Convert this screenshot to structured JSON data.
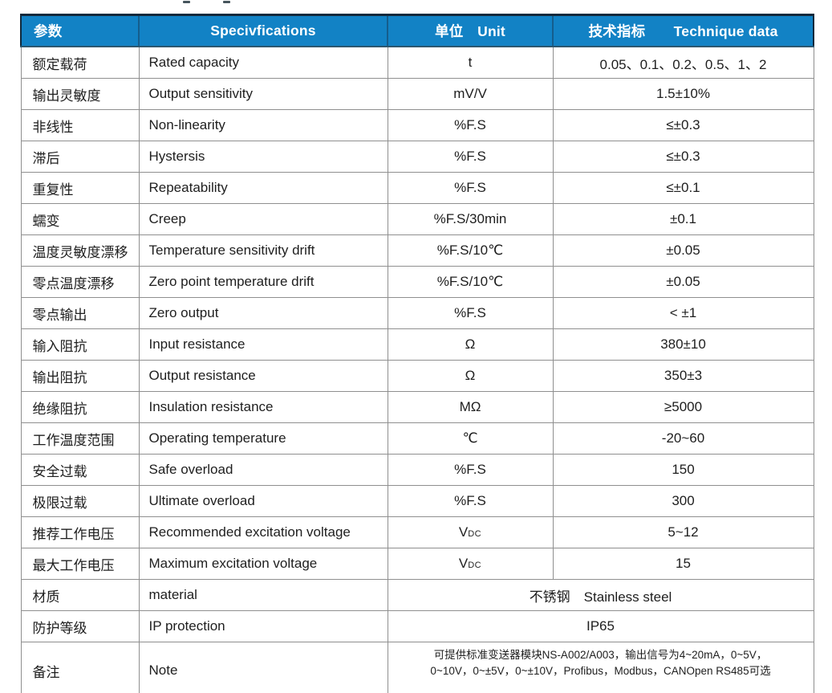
{
  "page": {
    "background_color": "#ffffff",
    "accent_color": "#1282c5",
    "dark_border_color": "#10293c"
  },
  "table": {
    "header": {
      "bg_color": "#1282c5",
      "text_color": "#ffffff",
      "columns": [
        {
          "id": "param",
          "label": "参数"
        },
        {
          "id": "specifications",
          "label": "Specivfications"
        },
        {
          "id": "unit",
          "label": "单位　Unit"
        },
        {
          "id": "technique-data",
          "label": "技术指标　　Technique data"
        }
      ]
    },
    "rows": [
      {
        "param_cn": "额定载荷",
        "param_en": "Rated capacity",
        "unit": "t",
        "value": "0.05、0.1、0.2、0.5、1、2"
      },
      {
        "param_cn": "输出灵敏度",
        "param_en": "Output sensitivity",
        "unit": "mV/V",
        "value": "1.5±10%"
      },
      {
        "param_cn": "非线性",
        "param_en": "Non-linearity",
        "unit": "%F.S",
        "value": "≤±0.3"
      },
      {
        "param_cn": "滞后",
        "param_en": "Hystersis",
        "unit": "%F.S",
        "value": "≤±0.3"
      },
      {
        "param_cn": "重复性",
        "param_en": "Repeatability",
        "unit": "%F.S",
        "value": "≤±0.1"
      },
      {
        "param_cn": "蠕变",
        "param_en": "Creep",
        "unit": "%F.S/30min",
        "value": "±0.1"
      },
      {
        "param_cn": "温度灵敏度漂移",
        "param_en": "Temperature sensitivity drift",
        "unit": "%F.S/10℃",
        "value": "±0.05"
      },
      {
        "param_cn": "零点温度漂移",
        "param_en": "Zero point temperature drift",
        "unit": "%F.S/10℃",
        "value": "±0.05"
      },
      {
        "param_cn": "零点输出",
        "param_en": "Zero output",
        "unit": "%F.S",
        "value": "< ±1"
      },
      {
        "param_cn": "输入阻抗",
        "param_en": "Input resistance",
        "unit": "Ω",
        "value": "380±10"
      },
      {
        "param_cn": "输出阻抗",
        "param_en": "Output resistance",
        "unit": "Ω",
        "value": "350±3"
      },
      {
        "param_cn": "绝缘阻抗",
        "param_en": "Insulation resistance",
        "unit": "MΩ",
        "value": "≥5000"
      },
      {
        "param_cn": "工作温度范围",
        "param_en": "Operating temperature",
        "unit": "℃",
        "value": "-20~60"
      },
      {
        "param_cn": "安全过载",
        "param_en": "Safe overload",
        "unit": "%F.S",
        "value": "150"
      },
      {
        "param_cn": "极限过载",
        "param_en": "Ultimate overload",
        "unit": "%F.S",
        "value": "300"
      },
      {
        "param_cn": "推荐工作电压",
        "param_en": "Recommended excitation voltage",
        "unit": {
          "main": "V",
          "sub": "DC"
        },
        "value": "5~12"
      },
      {
        "param_cn": "最大工作电压",
        "param_en": "Maximum excitation voltage",
        "unit": {
          "main": "V",
          "sub": "DC"
        },
        "value": "15"
      },
      {
        "param_cn": "材质",
        "param_en": "material",
        "merged": true,
        "value": "不锈钢　Stainless steel"
      },
      {
        "param_cn": "防护等级",
        "param_en": "IP protection",
        "merged": true,
        "value": "IP65"
      },
      {
        "param_cn": "备注",
        "param_en": "Note",
        "merged": true,
        "note": true,
        "value_lines": [
          "可提供标准变送器模块NS-A002/A003，输出信号为4~20mA，0~5V，",
          "0~10V，0~±5V，0~±10V，Profibus，Modbus，CANOpen RS485可选"
        ]
      }
    ]
  }
}
